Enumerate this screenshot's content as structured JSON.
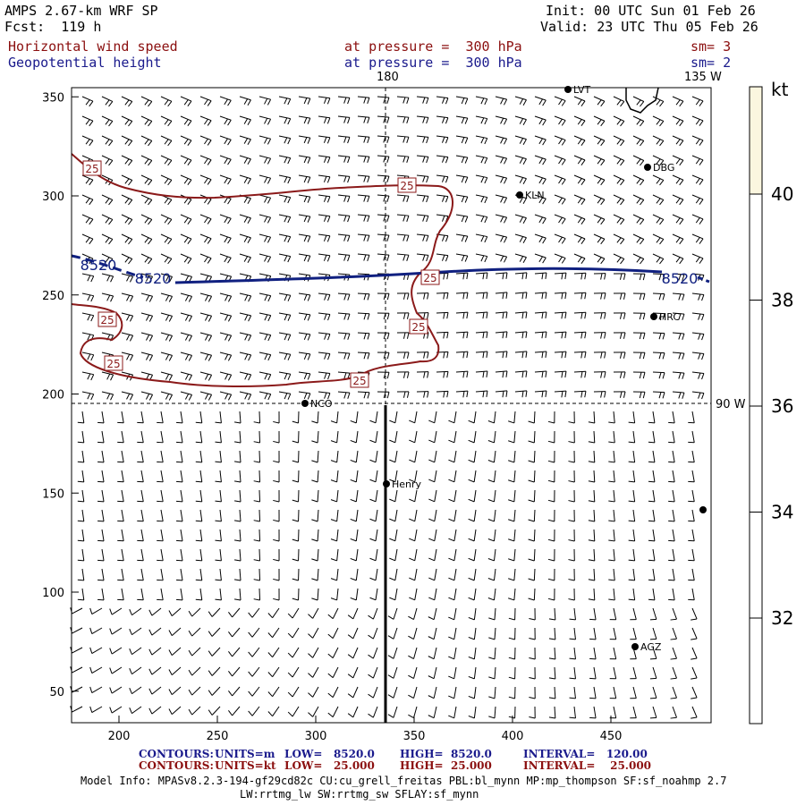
{
  "header": {
    "model": "AMPS 2.67-km WRF SP",
    "init": "Init: 00 UTC Sun 01 Feb 26",
    "fcst": "Fcst:  119 h",
    "valid": "Valid: 23 UTC Thu 05 Feb 26",
    "field1": "Horizontal wind speed",
    "field1_level": "at pressure =  300 hPa",
    "field1_sm": "sm= 3",
    "field2": "Geopotential height",
    "field2_level": "at pressure =  300 hPa",
    "field2_sm": "sm= 2"
  },
  "map_labels": {
    "lon_180": "180",
    "lon_135w": "135 W",
    "lon_90w": "90 W",
    "x_ticks": [
      "200",
      "250",
      "300",
      "350",
      "400",
      "450"
    ],
    "y_ticks": [
      "350",
      "300",
      "250",
      "200",
      "150",
      "100",
      "50"
    ],
    "height_contour": [
      "8520",
      "8520",
      "8520"
    ],
    "speed_contour": [
      "25",
      "25",
      "25",
      "25",
      "25",
      "25",
      "25"
    ],
    "stations": [
      "LVT",
      "DBG",
      "KLN",
      "HRC",
      "NCO",
      "Henry",
      "AGZ"
    ]
  },
  "colorbar": {
    "unit": "kt",
    "labels": [
      "40",
      "38",
      "36",
      "34",
      "32"
    ],
    "top_color": "#fbf6df"
  },
  "footer": {
    "c1_label": "CONTOURS:",
    "c1_units": "UNITS=m",
    "c1_low": "LOW=   8520.0",
    "c1_high": "HIGH=  8520.0",
    "c1_interval": "INTERVAL=   120.00",
    "c2_label": "CONTOURS:",
    "c2_units": "UNITS=kt",
    "c2_low": "LOW=   25.000",
    "c2_high": "HIGH=  25.000",
    "c2_interval": "INTERVAL=    25.000",
    "info1": "Model Info: MPASv8.2.3-194-gf29cd82c CU:cu_grell_freitas PBL:bl_mynn MP:mp_thompson SF:sf_noahmp 2.7",
    "info2": "LW:rrtmg_lw SW:rrtmg_sw SFLAY:sf_mynn"
  },
  "colors": {
    "speed_contour": "#8b1a1a",
    "height_contour": "#102080",
    "footer_blue": "#1a1a8c",
    "footer_red": "#8b0f0f"
  }
}
